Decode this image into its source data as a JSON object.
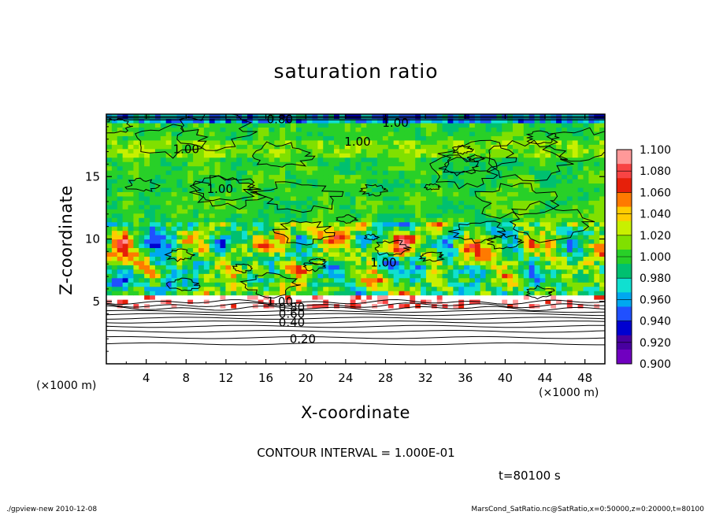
{
  "chart_data": {
    "type": "heatmap",
    "title": "saturation ratio",
    "xlabel": "X-coordinate",
    "ylabel": "Z-coordinate",
    "xunit_left": "(×1000 m)",
    "xunit_right": "(×1000 m)",
    "xlim": [
      0,
      50
    ],
    "ylim": [
      0,
      20
    ],
    "x_ticks": [
      4,
      8,
      12,
      16,
      20,
      24,
      28,
      32,
      36,
      40,
      44,
      48
    ],
    "y_ticks": [
      5,
      10,
      15
    ],
    "colorbar": {
      "min": 0.9,
      "max": 1.1,
      "labels": [
        "1.100",
        "1.080",
        "1.060",
        "1.040",
        "1.020",
        "1.000",
        "0.980",
        "0.960",
        "0.940",
        "0.920",
        "0.900"
      ],
      "colors": [
        "#ff9999",
        "#f84444",
        "#e6200a",
        "#ff7a00",
        "#ffcc00",
        "#c8f000",
        "#80e000",
        "#28d028",
        "#00c070",
        "#10e0d0",
        "#00a8f0",
        "#2050ff",
        "#0000d0",
        "#4800a0",
        "#7000c0"
      ]
    },
    "contour_labels": [
      {
        "text": "0.20",
        "x": 19.7,
        "y": 2.0
      },
      {
        "text": "0.40",
        "x": 18.6,
        "y": 3.3
      },
      {
        "text": "0.60",
        "x": 18.6,
        "y": 4.0
      },
      {
        "text": "0.80",
        "x": 18.6,
        "y": 4.5
      },
      {
        "text": "1.00",
        "x": 17.4,
        "y": 5.0
      },
      {
        "text": "1.00",
        "x": 27.8,
        "y": 8.1
      },
      {
        "text": "1.00",
        "x": 11.4,
        "y": 14.0
      },
      {
        "text": "1.00",
        "x": 8.0,
        "y": 17.2
      },
      {
        "text": "1.00",
        "x": 25.2,
        "y": 17.8
      },
      {
        "text": "1.00",
        "x": 29.0,
        "y": 19.3
      },
      {
        "text": "0.80",
        "x": 17.4,
        "y": 19.6
      }
    ],
    "contour_interval_text": "CONTOUR INTERVAL = 1.000E-01",
    "time_text": "t=80100 s"
  },
  "footer": {
    "left": "./gpview-new   2010-12-08",
    "right": "MarsCond_SatRatio.nc@SatRatio,x=0:50000,z=0:20000,t=80100"
  }
}
